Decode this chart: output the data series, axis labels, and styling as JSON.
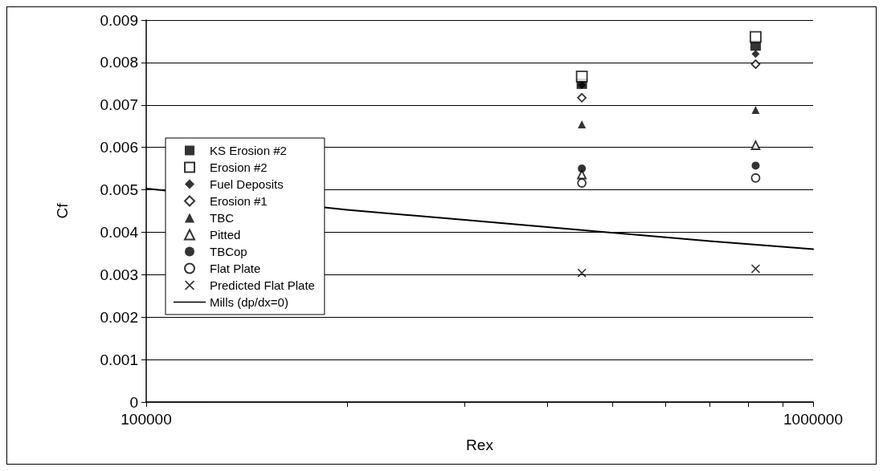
{
  "chart_data": {
    "type": "scatter",
    "xlabel": "Rex",
    "ylabel": "Cf",
    "log": "x",
    "xlim": [
      100000,
      1000000
    ],
    "xticks": [
      100000,
      {
        "value": 200000,
        "label": null
      },
      {
        "value": 300000,
        "label": null
      },
      {
        "value": 400000,
        "label": null
      },
      {
        "value": 500000,
        "label": null
      },
      {
        "value": 600000,
        "label": null
      },
      {
        "value": 700000,
        "label": null
      },
      {
        "value": 800000,
        "label": null
      },
      {
        "value": 900000,
        "label": null
      },
      1000000
    ],
    "ylim": [
      0,
      0.009
    ],
    "yticks": [
      0,
      0.001,
      0.002,
      0.003,
      0.004,
      0.005,
      0.006,
      0.007,
      0.008,
      0.009
    ],
    "grid": "y",
    "legend": "left",
    "x": [
      450000,
      820000
    ],
    "series": [
      {
        "name": "KS Erosion #2",
        "marker": "square",
        "color": "#000000",
        "values": [
          0.0075,
          0.0084
        ]
      },
      {
        "name": "Erosion #2",
        "marker": "square",
        "color": "#ffffff",
        "values": [
          0.00767,
          0.0086
        ]
      },
      {
        "name": "Fuel Deposits",
        "marker": "diamond",
        "color": "#000000",
        "values": [
          0.00747,
          0.0082
        ]
      },
      {
        "name": "Erosion #1",
        "marker": "diamond",
        "color": "#ffffff",
        "values": [
          0.00717,
          0.00796
        ]
      },
      {
        "name": "TBC",
        "marker": "triangle",
        "color": "#000000",
        "values": [
          0.00654,
          0.00688
        ]
      },
      {
        "name": "Pitted",
        "marker": "triangle",
        "color": "#ffffff",
        "values": [
          0.00536,
          0.00605
        ]
      },
      {
        "name": "TBCop",
        "marker": "circle",
        "color": "#000000",
        "values": [
          0.0055,
          0.00557
        ]
      },
      {
        "name": "Flat Plate",
        "marker": "circle",
        "color": "#ffffff",
        "values": [
          0.00516,
          0.00528
        ]
      },
      {
        "name": "Predicted Flat Plate",
        "marker": "cross",
        "color": "#000000",
        "values": [
          0.00304,
          0.00314
        ]
      },
      {
        "name": "Mills (dp/dx=0)",
        "type": "line",
        "marker": "none",
        "line_style": "solid",
        "color": "#000000",
        "x": [
          100000,
          200000,
          300000,
          450000,
          700000,
          1000000
        ],
        "values": [
          0.00503,
          0.00453,
          0.00429,
          0.00405,
          0.00379,
          0.0036
        ]
      }
    ]
  }
}
